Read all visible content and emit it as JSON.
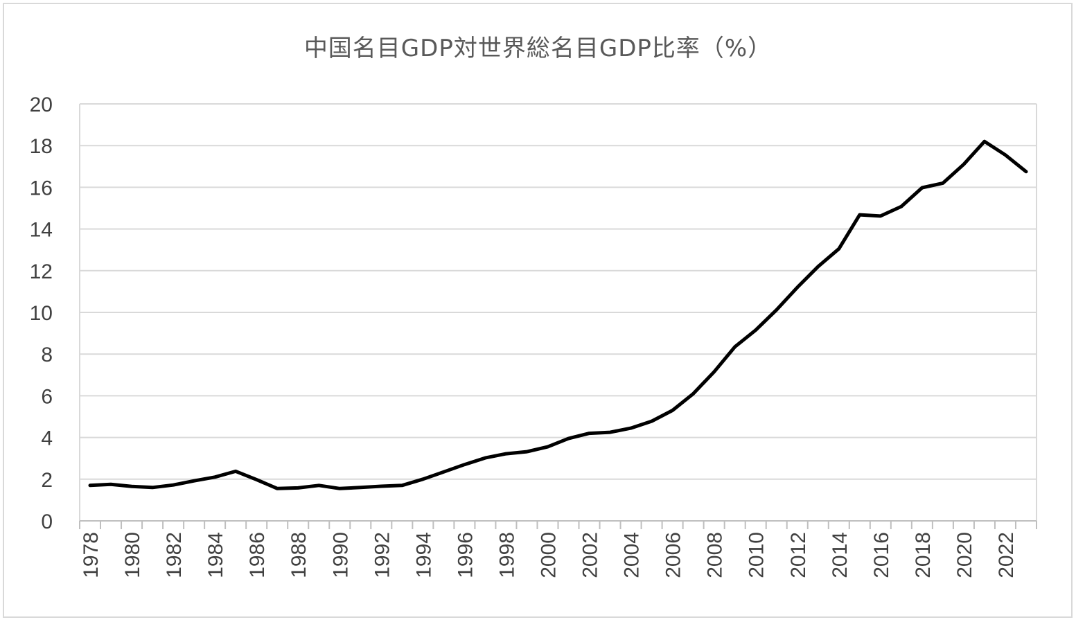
{
  "chart_data": {
    "type": "line",
    "title": "中国名目GDP対世界総名目GDP比率（%）",
    "xlabel": "",
    "ylabel": "",
    "ylim": [
      0,
      20
    ],
    "yticks": [
      0,
      2,
      4,
      6,
      8,
      10,
      12,
      14,
      16,
      18,
      20
    ],
    "grid": true,
    "legend": "none",
    "x": [
      1978,
      1979,
      1980,
      1981,
      1982,
      1983,
      1984,
      1985,
      1986,
      1987,
      1988,
      1989,
      1990,
      1991,
      1992,
      1993,
      1994,
      1995,
      1996,
      1997,
      1998,
      1999,
      2000,
      2001,
      2002,
      2003,
      2004,
      2005,
      2006,
      2007,
      2008,
      2009,
      2010,
      2011,
      2012,
      2013,
      2014,
      2015,
      2016,
      2017,
      2018,
      2019,
      2020,
      2021,
      2022,
      2023
    ],
    "xtick_labels": [
      "1978",
      "1980",
      "1982",
      "1984",
      "1986",
      "1988",
      "1990",
      "1992",
      "1994",
      "1996",
      "1998",
      "2000",
      "2002",
      "2004",
      "2006",
      "2008",
      "2010",
      "2012",
      "2014",
      "2016",
      "2018",
      "2020",
      "2022"
    ],
    "series": [
      {
        "values": [
          1.7,
          1.75,
          1.65,
          1.6,
          1.72,
          1.92,
          2.1,
          2.38,
          1.98,
          1.55,
          1.58,
          1.7,
          1.55,
          1.6,
          1.66,
          1.7,
          2.0,
          2.35,
          2.7,
          3.02,
          3.22,
          3.32,
          3.55,
          3.95,
          4.2,
          4.25,
          4.45,
          4.78,
          5.3,
          6.1,
          7.15,
          8.35,
          9.15,
          10.12,
          11.2,
          12.2,
          13.05,
          14.68,
          14.62,
          15.08,
          15.98,
          16.2,
          17.1,
          18.2,
          17.55,
          16.75
        ],
        "color": "#000000"
      }
    ]
  }
}
